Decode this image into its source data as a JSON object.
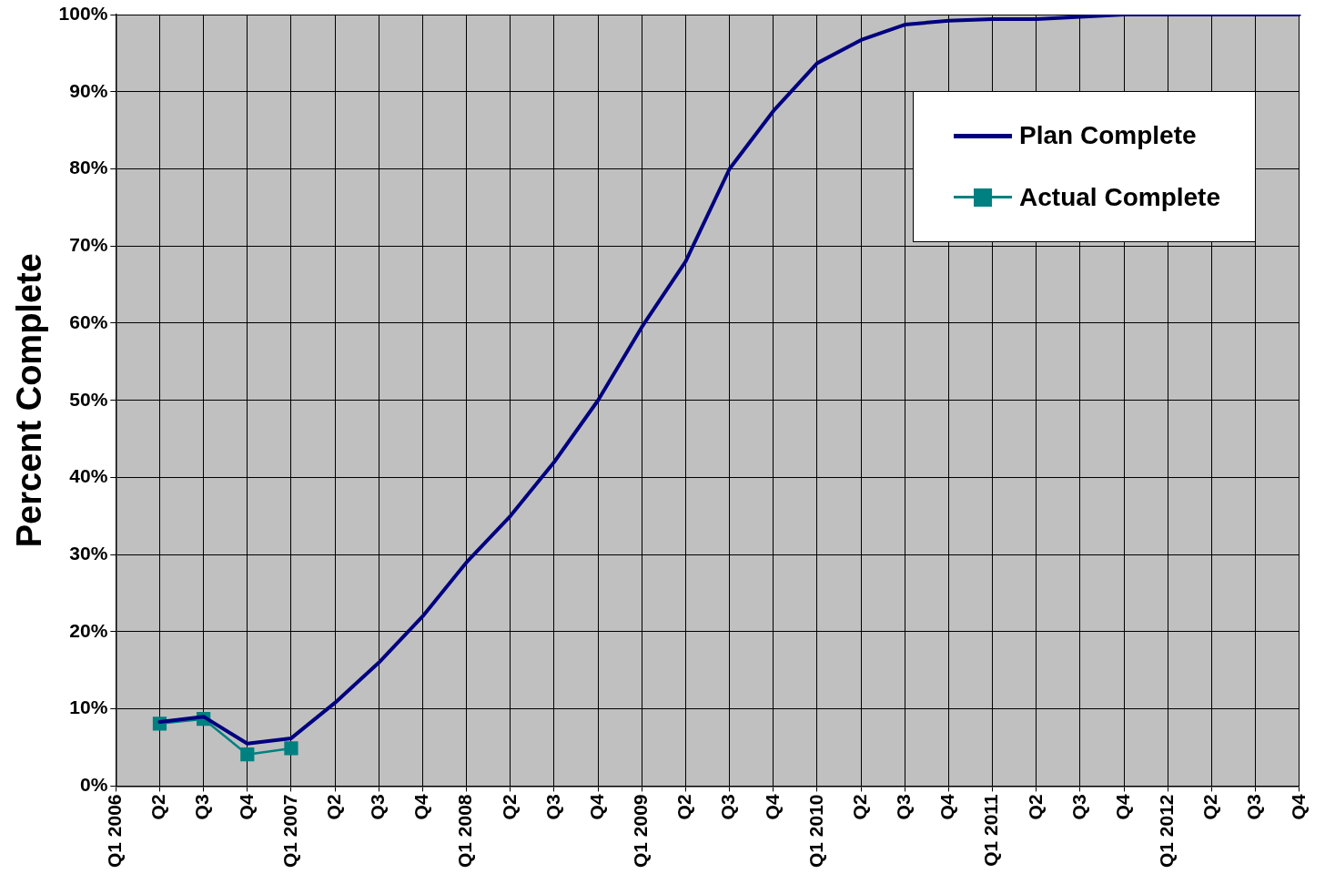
{
  "chart_data": {
    "type": "line",
    "ylabel": "Percent Complete",
    "categories": [
      "Q1 2006",
      "Q2",
      "Q3",
      "Q4",
      "Q1 2007",
      "Q2",
      "Q3",
      "Q4",
      "Q1 2008",
      "Q2",
      "Q3",
      "Q4",
      "Q1 2009",
      "Q2",
      "Q3",
      "Q4",
      "Q1 2010",
      "Q2",
      "Q3",
      "Q4",
      "Q1 2011",
      "Q2",
      "Q3",
      "Q4",
      "Q1 2012",
      "Q2",
      "Q3",
      "Q4"
    ],
    "series": [
      {
        "name": "Plan Complete",
        "color": "#000080",
        "marker": "none",
        "values": [
          null,
          8.3,
          9,
          5.5,
          6.2,
          10.8,
          16,
          22,
          29,
          35,
          42,
          50,
          59.5,
          68,
          80,
          87.5,
          93.7,
          96.7,
          98.7,
          99.2,
          99.4,
          99.4,
          99.7,
          100,
          100,
          100,
          100,
          100
        ]
      },
      {
        "name": "Actual Complete",
        "color": "#008080",
        "marker": "square",
        "values": [
          null,
          8.1,
          8.7,
          4.1,
          4.9,
          null,
          null,
          null,
          null,
          null,
          null,
          null,
          null,
          null,
          null,
          null,
          null,
          null,
          null,
          null,
          null,
          null,
          null,
          null,
          null,
          null,
          null,
          null
        ]
      }
    ],
    "ylim": [
      0,
      100
    ],
    "yticks": [
      {
        "value": 0,
        "label": "0%"
      },
      {
        "value": 10,
        "label": "10%"
      },
      {
        "value": 20,
        "label": "20%"
      },
      {
        "value": 30,
        "label": "30%"
      },
      {
        "value": 40,
        "label": "40%"
      },
      {
        "value": 50,
        "label": "50%"
      },
      {
        "value": 60,
        "label": "60%"
      },
      {
        "value": 70,
        "label": "70%"
      },
      {
        "value": 80,
        "label": "80%"
      },
      {
        "value": 90,
        "label": "90%"
      },
      {
        "value": 100,
        "label": "100%"
      }
    ],
    "grid": true,
    "legend": "top right"
  }
}
